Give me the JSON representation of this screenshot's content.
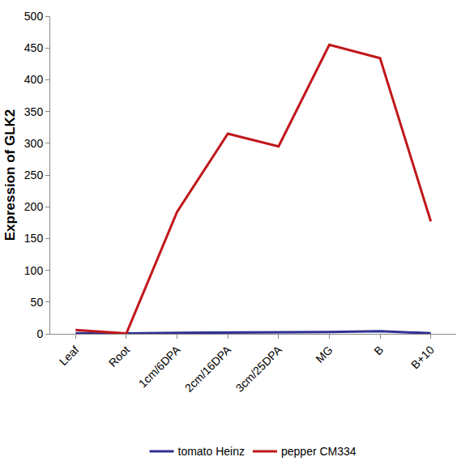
{
  "chart_data": {
    "type": "line",
    "y_label": "Expression of GLK2",
    "categories": [
      "Leaf",
      "Root",
      "1cm/6DPA",
      "2cm/16DPA",
      "3cm/25DPA",
      "MG",
      "B",
      "B+10"
    ],
    "series": [
      {
        "name": "tomato Heinz",
        "color": "#2e3192",
        "values": [
          1,
          0.5,
          1.5,
          2,
          2,
          3,
          4,
          1
        ]
      },
      {
        "name": "pepper CM334",
        "color": "#c0171b",
        "values": [
          6,
          0.5,
          192,
          315,
          295,
          455,
          434,
          177
        ]
      }
    ],
    "ylim": [
      0,
      500
    ],
    "yticks": [
      0,
      50,
      100,
      150,
      200,
      250,
      300,
      350,
      400,
      450,
      500
    ],
    "grid": false,
    "legend": "bottom"
  }
}
